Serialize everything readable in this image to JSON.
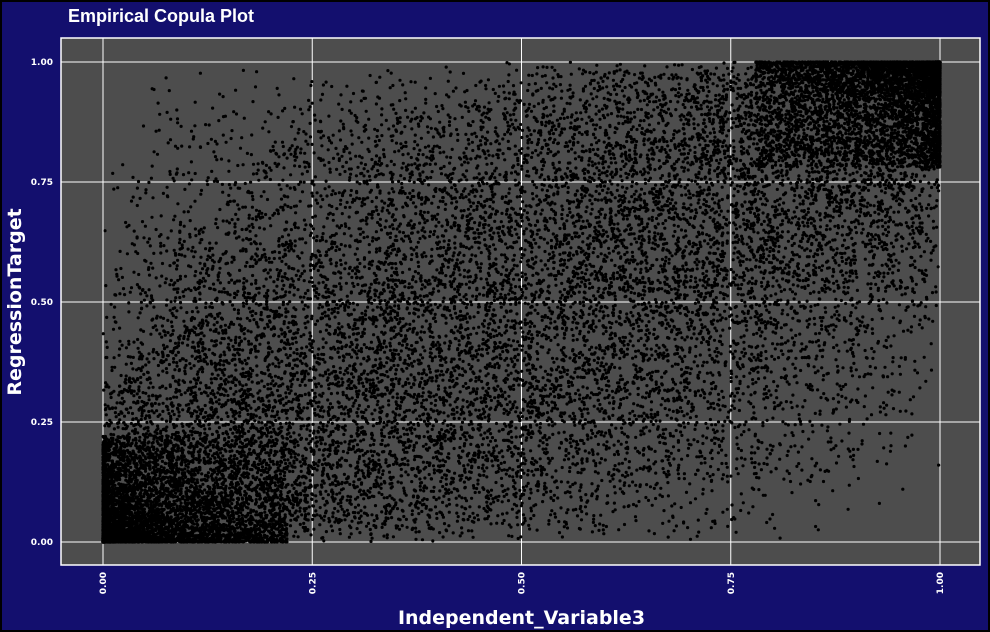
{
  "chart_data": {
    "type": "scatter",
    "title": "Empirical Copula Plot",
    "xlabel": "Independent_Variable3",
    "ylabel": "RegressionTarget",
    "xlim": [
      0,
      1
    ],
    "ylim": [
      0,
      1
    ],
    "x_ticks": [
      "0.00",
      "0.25",
      "0.50",
      "0.75",
      "1.00"
    ],
    "y_ticks": [
      "0.00",
      "0.25",
      "0.50",
      "0.75",
      "1.00"
    ],
    "grid": true,
    "legend": "none",
    "colors": {
      "background": "#130f6e",
      "panel": "#4d4d4d",
      "grid": "#ffffff",
      "points": "#000000",
      "text": "#ffffff"
    },
    "points": [
      [
        0.012,
        0.031
      ],
      [
        0.035,
        0.008
      ],
      [
        0.058,
        0.072
      ],
      [
        0.021,
        0.115
      ],
      [
        0.074,
        0.044
      ],
      [
        0.103,
        0.012
      ],
      [
        0.046,
        0.196
      ],
      [
        0.129,
        0.089
      ],
      [
        0.088,
        0.152
      ],
      [
        0.152,
        0.041
      ],
      [
        0.171,
        0.213
      ],
      [
        0.067,
        0.287
      ],
      [
        0.214,
        0.118
      ],
      [
        0.196,
        0.302
      ],
      [
        0.118,
        0.364
      ],
      [
        0.242,
        0.057
      ],
      [
        0.263,
        0.241
      ],
      [
        0.031,
        0.412
      ],
      [
        0.288,
        0.385
      ],
      [
        0.226,
        0.457
      ],
      [
        0.311,
        0.143
      ],
      [
        0.142,
        0.521
      ],
      [
        0.337,
        0.308
      ],
      [
        0.352,
        0.472
      ],
      [
        0.094,
        0.598
      ],
      [
        0.376,
        0.092
      ],
      [
        0.398,
        0.356
      ],
      [
        0.419,
        0.561
      ],
      [
        0.273,
        0.612
      ],
      [
        0.441,
        0.218
      ],
      [
        0.463,
        0.433
      ],
      [
        0.187,
        0.689
      ],
      [
        0.486,
        0.641
      ],
      [
        0.508,
        0.122
      ],
      [
        0.522,
        0.514
      ],
      [
        0.357,
        0.727
      ],
      [
        0.547,
        0.326
      ],
      [
        0.568,
        0.702
      ],
      [
        0.589,
        0.448
      ],
      [
        0.061,
        0.813
      ],
      [
        0.612,
        0.067
      ],
      [
        0.634,
        0.588
      ],
      [
        0.451,
        0.836
      ],
      [
        0.655,
        0.251
      ],
      [
        0.677,
        0.753
      ],
      [
        0.698,
        0.514
      ],
      [
        0.238,
        0.892
      ],
      [
        0.719,
        0.174
      ],
      [
        0.741,
        0.832
      ],
      [
        0.763,
        0.637
      ],
      [
        0.574,
        0.944
      ],
      [
        0.786,
        0.378
      ],
      [
        0.807,
        0.904
      ],
      [
        0.829,
        0.742
      ],
      [
        0.851,
        0.268
      ],
      [
        0.872,
        0.961
      ],
      [
        0.894,
        0.587
      ],
      [
        0.916,
        0.879
      ],
      [
        0.937,
        0.994
      ],
      [
        0.958,
        0.768
      ],
      [
        0.979,
        0.932
      ],
      [
        0.993,
        0.987
      ],
      [
        0.965,
        0.972
      ],
      [
        0.944,
        0.921
      ],
      [
        0.921,
        0.983
      ],
      [
        0.902,
        0.951
      ],
      [
        0.884,
        0.915
      ],
      [
        0.861,
        0.868
      ],
      [
        0.842,
        0.977
      ],
      [
        0.823,
        0.812
      ],
      [
        0.812,
        0.548
      ],
      [
        0.792,
        0.715
      ],
      [
        0.774,
        0.953
      ],
      [
        0.752,
        0.462
      ],
      [
        0.733,
        0.688
      ],
      [
        0.706,
        0.871
      ],
      [
        0.684,
        0.392
      ],
      [
        0.662,
        0.822
      ],
      [
        0.641,
        0.673
      ],
      [
        0.619,
        0.318
      ],
      [
        0.597,
        0.788
      ],
      [
        0.574,
        0.551
      ],
      [
        0.553,
        0.214
      ],
      [
        0.531,
        0.732
      ],
      [
        0.512,
        0.417
      ],
      [
        0.493,
        0.859
      ],
      [
        0.472,
        0.286
      ],
      [
        0.452,
        0.603
      ],
      [
        0.431,
        0.159
      ],
      [
        0.409,
        0.693
      ],
      [
        0.387,
        0.244
      ],
      [
        0.366,
        0.538
      ],
      [
        0.344,
        0.064
      ],
      [
        0.322,
        0.627
      ],
      [
        0.301,
        0.212
      ],
      [
        0.281,
        0.487
      ],
      [
        0.259,
        0.036
      ],
      [
        0.238,
        0.372
      ],
      [
        0.217,
        0.552
      ],
      [
        0.193,
        0.146
      ],
      [
        0.174,
        0.418
      ],
      [
        0.153,
        0.251
      ],
      [
        0.131,
        0.023
      ],
      [
        0.112,
        0.271
      ],
      [
        0.092,
        0.087
      ],
      [
        0.071,
        0.168
      ],
      [
        0.049,
        0.054
      ],
      [
        0.028,
        0.237
      ],
      [
        0.008,
        0.018
      ],
      [
        0.016,
        0.061
      ],
      [
        0.043,
        0.026
      ],
      [
        0.079,
        0.011
      ],
      [
        0.026,
        0.089
      ],
      [
        0.055,
        0.134
      ],
      [
        0.098,
        0.048
      ],
      [
        0.136,
        0.129
      ],
      [
        0.164,
        0.076
      ],
      [
        0.083,
        0.224
      ],
      [
        0.203,
        0.168
      ],
      [
        0.123,
        0.326
      ],
      [
        0.248,
        0.294
      ],
      [
        0.054,
        0.353
      ],
      [
        0.292,
        0.066
      ],
      [
        0.168,
        0.443
      ],
      [
        0.331,
        0.412
      ],
      [
        0.112,
        0.488
      ],
      [
        0.371,
        0.191
      ],
      [
        0.251,
        0.576
      ],
      [
        0.414,
        0.482
      ],
      [
        0.171,
        0.651
      ],
      [
        0.458,
        0.094
      ],
      [
        0.327,
        0.691
      ],
      [
        0.501,
        0.553
      ],
      [
        0.041,
        0.701
      ],
      [
        0.543,
        0.277
      ],
      [
        0.418,
        0.768
      ],
      [
        0.586,
        0.634
      ],
      [
        0.208,
        0.784
      ],
      [
        0.627,
        0.139
      ],
      [
        0.506,
        0.806
      ],
      [
        0.671,
        0.579
      ],
      [
        0.312,
        0.865
      ],
      [
        0.714,
        0.305
      ],
      [
        0.593,
        0.897
      ],
      [
        0.756,
        0.701
      ],
      [
        0.131,
        0.904
      ],
      [
        0.798,
        0.457
      ],
      [
        0.688,
        0.928
      ],
      [
        0.842,
        0.626
      ],
      [
        0.782,
        0.997
      ],
      [
        0.886,
        0.778
      ],
      [
        0.927,
        0.635
      ],
      [
        0.971,
        0.856
      ],
      [
        0.984,
        0.894
      ],
      [
        0.951,
        0.838
      ],
      [
        0.912,
        0.797
      ],
      [
        0.896,
        0.942
      ],
      [
        0.868,
        0.722
      ],
      [
        0.846,
        0.924
      ],
      [
        0.817,
        0.965
      ],
      [
        0.803,
        0.592
      ],
      [
        0.768,
        0.894
      ],
      [
        0.744,
        0.565
      ],
      [
        0.722,
        0.958
      ],
      [
        0.701,
        0.621
      ],
      [
        0.679,
        0.463
      ],
      [
        0.658,
        0.917
      ],
      [
        0.633,
        0.471
      ],
      [
        0.614,
        0.861
      ],
      [
        0.592,
        0.382
      ],
      [
        0.569,
        0.637
      ],
      [
        0.548,
        0.478
      ],
      [
        0.527,
        0.903
      ],
      [
        0.503,
        0.327
      ],
      [
        0.482,
        0.754
      ],
      [
        0.461,
        0.521
      ],
      [
        0.437,
        0.897
      ],
      [
        0.417,
        0.381
      ],
      [
        0.394,
        0.813
      ],
      [
        0.372,
        0.445
      ],
      [
        0.351,
        0.163
      ],
      [
        0.328,
        0.787
      ],
      [
        0.306,
        0.344
      ],
      [
        0.284,
        0.712
      ],
      [
        0.262,
        0.139
      ],
      [
        0.241,
        0.651
      ],
      [
        0.219,
        0.247
      ],
      [
        0.197,
        0.524
      ],
      [
        0.176,
        0.318
      ],
      [
        0.154,
        0.583
      ],
      [
        0.133,
        0.184
      ],
      [
        0.109,
        0.406
      ],
      [
        0.087,
        0.312
      ],
      [
        0.064,
        0.101
      ],
      [
        0.042,
        0.467
      ],
      [
        0.019,
        0.153
      ],
      [
        0.006,
        0.283
      ],
      [
        0.014,
        0.364
      ],
      [
        0.037,
        0.562
      ],
      [
        0.003,
        0.044
      ]
    ]
  }
}
